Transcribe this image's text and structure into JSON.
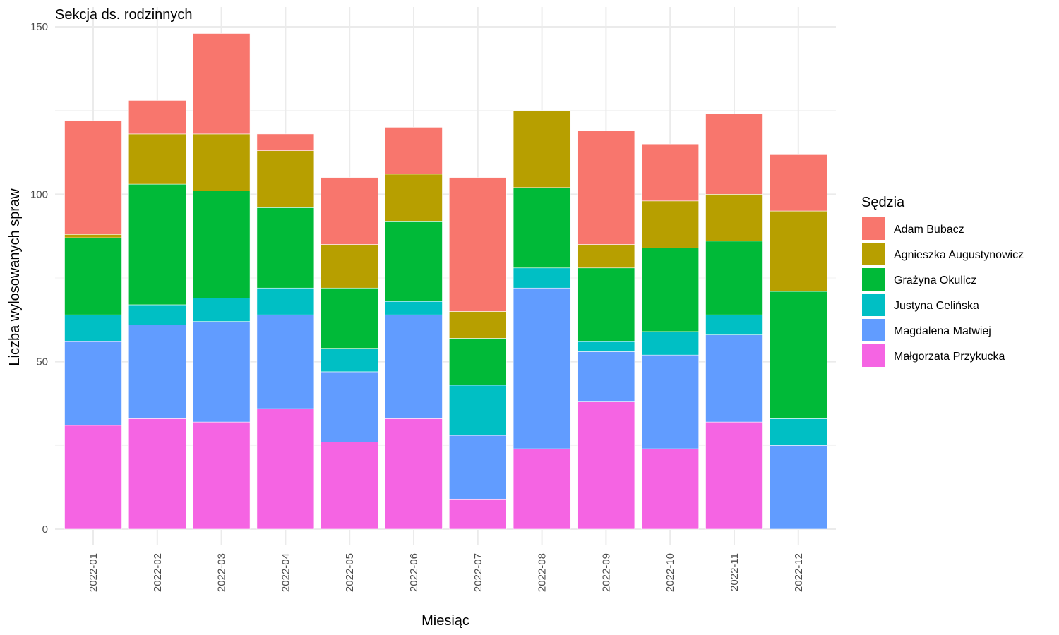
{
  "chart_data": {
    "type": "bar",
    "stacked": true,
    "title": "Sekcja ds. rodzinnych",
    "xlabel": "Miesiąc",
    "ylabel": "Liczba wylosowanych spraw",
    "ylim": [
      0,
      150
    ],
    "yticks": [
      0,
      50,
      100,
      150
    ],
    "grid": true,
    "legend": {
      "title": "Sędzia",
      "position": "right"
    },
    "categories": [
      "2022-01",
      "2022-02",
      "2022-03",
      "2022-04",
      "2022-05",
      "2022-06",
      "2022-07",
      "2022-08",
      "2022-09",
      "2022-10",
      "2022-11",
      "2022-12"
    ],
    "series": [
      {
        "name": "Adam Bubacz",
        "color": "#F8766D",
        "values": [
          34,
          10,
          30,
          5,
          20,
          14,
          40,
          0,
          34,
          17,
          24,
          17
        ]
      },
      {
        "name": "Agnieszka Augustynowicz",
        "color": "#B79F00",
        "values": [
          1,
          15,
          17,
          17,
          13,
          14,
          8,
          23,
          7,
          14,
          14,
          24
        ]
      },
      {
        "name": "Grażyna Okulicz",
        "color": "#00BA38",
        "values": [
          23,
          36,
          32,
          24,
          18,
          24,
          14,
          24,
          22,
          25,
          22,
          38
        ]
      },
      {
        "name": "Justyna Celińska",
        "color": "#00BFC4",
        "values": [
          8,
          6,
          7,
          8,
          7,
          4,
          15,
          6,
          3,
          7,
          6,
          8
        ]
      },
      {
        "name": "Magdalena Matwiej",
        "color": "#619CFF",
        "values": [
          25,
          28,
          30,
          28,
          21,
          31,
          19,
          48,
          15,
          28,
          26,
          25
        ]
      },
      {
        "name": "Małgorzata Przykucka",
        "color": "#F564E3",
        "values": [
          31,
          33,
          32,
          36,
          26,
          33,
          9,
          24,
          38,
          24,
          32,
          0
        ]
      }
    ]
  }
}
